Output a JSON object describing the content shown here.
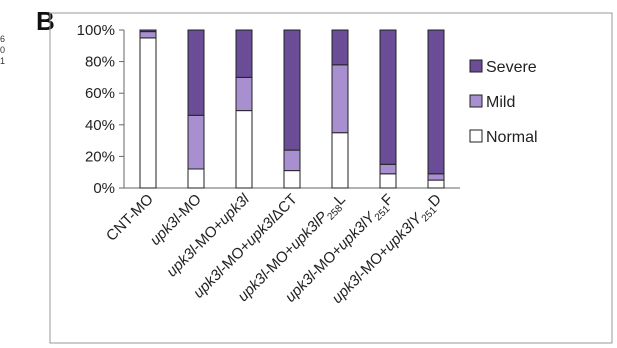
{
  "panel_label": "B",
  "side_snippet": [
    "6",
    "0",
    "1"
  ],
  "chart_data": {
    "type": "bar",
    "stacked": true,
    "percent": true,
    "categories": [
      "CNT-MO",
      "upk3l-MO",
      "upk3l-MO+upk3l",
      "upk3l-MO+upk3lΔCT",
      "upk3l-MO+upk3lP258L",
      "upk3l-MO+upk3lY251F",
      "upk3l-MO+upk3lY251D"
    ],
    "series": [
      {
        "name": "Normal",
        "values": [
          95,
          12,
          49,
          11,
          35,
          9,
          5
        ]
      },
      {
        "name": "Mild",
        "values": [
          4,
          34,
          21,
          13,
          43,
          6,
          4
        ]
      },
      {
        "name": "Severe",
        "values": [
          1,
          54,
          30,
          76,
          22,
          85,
          91
        ]
      }
    ],
    "ylim": [
      0,
      100
    ],
    "yticks": [
      "0%",
      "20%",
      "40%",
      "60%",
      "80%",
      "100%"
    ],
    "legend": [
      "Severe",
      "Mild",
      "Normal"
    ],
    "legend_position": "right",
    "colors": {
      "Normal": "#ffffff",
      "Mild": "#a88fd0",
      "Severe": "#6a4c97"
    },
    "grid": false
  }
}
